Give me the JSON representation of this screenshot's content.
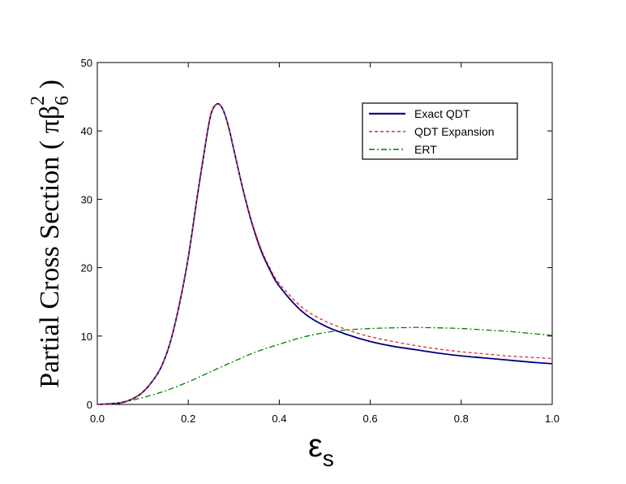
{
  "chart_data": {
    "type": "line",
    "xlabel": "ε",
    "xlabel_sub": "s",
    "ylabel": "Partial Cross Section ( πβ",
    "ylabel_sub": "6",
    "ylabel_sup": "2",
    "ylabel_close": " )",
    "xlim": [
      0.0,
      1.0
    ],
    "ylim": [
      0,
      50
    ],
    "x_ticks": [
      {
        "value": 0.0,
        "label": "0.0"
      },
      {
        "value": 0.2,
        "label": "0.2"
      },
      {
        "value": 0.4,
        "label": "0.4"
      },
      {
        "value": 0.6,
        "label": "0.6"
      },
      {
        "value": 0.8,
        "label": "0.8"
      },
      {
        "value": 1.0,
        "label": "1.0"
      }
    ],
    "y_ticks": [
      {
        "value": 0,
        "label": "0"
      },
      {
        "value": 10,
        "label": "10"
      },
      {
        "value": 20,
        "label": "20"
      },
      {
        "value": 30,
        "label": "30"
      },
      {
        "value": 40,
        "label": "40"
      },
      {
        "value": 50,
        "label": "50"
      }
    ],
    "grid": false,
    "legend_position": "top-right",
    "series": [
      {
        "name": "Exact QDT",
        "color": "#000080",
        "dash": "solid",
        "x": [
          0.0,
          0.05,
          0.08,
          0.1,
          0.12,
          0.14,
          0.16,
          0.18,
          0.2,
          0.22,
          0.24,
          0.25,
          0.26,
          0.27,
          0.28,
          0.29,
          0.3,
          0.32,
          0.34,
          0.36,
          0.38,
          0.4,
          0.45,
          0.5,
          0.55,
          0.6,
          0.65,
          0.7,
          0.75,
          0.8,
          0.85,
          0.9,
          0.95,
          1.0
        ],
        "y": [
          0.0,
          0.2,
          0.9,
          1.8,
          3.3,
          5.4,
          9.0,
          14.5,
          21.5,
          30.5,
          39.0,
          42.5,
          43.8,
          43.8,
          42.5,
          40.2,
          37.3,
          31.5,
          26.5,
          22.5,
          19.6,
          17.3,
          13.6,
          11.5,
          10.2,
          9.2,
          8.5,
          8.0,
          7.5,
          7.1,
          6.8,
          6.5,
          6.2,
          5.95
        ]
      },
      {
        "name": "QDT Expansion",
        "color": "#e03030",
        "dash": "dashed",
        "x": [
          0.0,
          0.05,
          0.08,
          0.1,
          0.12,
          0.14,
          0.16,
          0.18,
          0.2,
          0.22,
          0.24,
          0.25,
          0.26,
          0.27,
          0.28,
          0.29,
          0.3,
          0.32,
          0.34,
          0.36,
          0.38,
          0.4,
          0.45,
          0.5,
          0.55,
          0.6,
          0.65,
          0.7,
          0.75,
          0.8,
          0.85,
          0.9,
          0.95,
          1.0
        ],
        "y": [
          0.0,
          0.2,
          0.9,
          1.8,
          3.3,
          5.4,
          9.0,
          14.5,
          21.5,
          30.5,
          39.0,
          42.5,
          43.8,
          43.8,
          42.5,
          40.2,
          37.3,
          31.6,
          26.7,
          22.8,
          19.9,
          17.7,
          14.2,
          12.2,
          10.9,
          9.9,
          9.2,
          8.6,
          8.1,
          7.7,
          7.4,
          7.1,
          6.9,
          6.7
        ]
      },
      {
        "name": "ERT",
        "color": "#008000",
        "dash": "dashdot",
        "x": [
          0.0,
          0.05,
          0.1,
          0.15,
          0.2,
          0.25,
          0.3,
          0.35,
          0.4,
          0.45,
          0.5,
          0.55,
          0.6,
          0.65,
          0.7,
          0.75,
          0.8,
          0.85,
          0.9,
          0.95,
          1.0
        ],
        "y": [
          0.0,
          0.3,
          1.0,
          2.0,
          3.3,
          4.8,
          6.3,
          7.7,
          8.8,
          9.8,
          10.5,
          10.9,
          11.1,
          11.2,
          11.25,
          11.2,
          11.1,
          10.9,
          10.7,
          10.4,
          10.1
        ]
      }
    ]
  }
}
